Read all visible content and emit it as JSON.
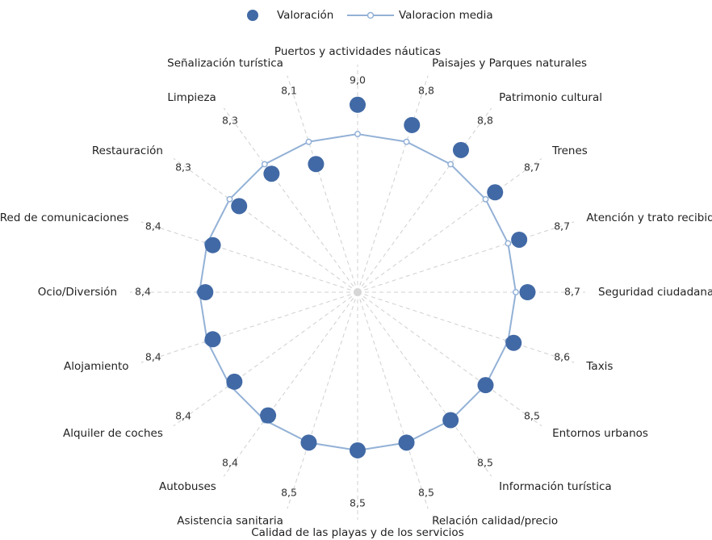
{
  "chart_data": {
    "type": "radar",
    "categories": [
      "Puertos y actividades náuticas",
      "Paisajes y Parques naturales",
      "Patrimonio cultural",
      "Trenes",
      "Atención y trato recibido",
      "Seguridad ciudadana",
      "Taxis",
      "Entornos urbanos",
      "Información turística",
      "Relación calidad/precio",
      "Calidad de las playas y de los servicios",
      "Asistencia sanitaria",
      "Autobuses",
      "Alquiler de coches",
      "Alojamiento",
      "Ocio/Diversión",
      "Red de comunicaciones",
      "Restauración",
      "Limpieza",
      "Señalización turística"
    ],
    "series": [
      {
        "name": "Valoración",
        "color": "#4169a5",
        "values": [
          9.0,
          8.8,
          8.8,
          8.7,
          8.7,
          8.7,
          8.6,
          8.5,
          8.5,
          8.5,
          8.5,
          8.5,
          8.4,
          8.4,
          8.4,
          8.4,
          8.4,
          8.3,
          8.3,
          8.1
        ],
        "value_labels": [
          "9,0",
          "8,8",
          "8,8",
          "8,7",
          "8,7",
          "8,7",
          "8,6",
          "8,5",
          "8,5",
          "8,5",
          "8,5",
          "8,5",
          "8,4",
          "8,4",
          "8,4",
          "8,4",
          "8,4",
          "8,3",
          "8,3",
          "8,1"
        ]
      },
      {
        "name": "Valoracion media",
        "color": "#93b1d6",
        "values": [
          8.5,
          8.5,
          8.5,
          8.5,
          8.5,
          8.5,
          8.5,
          8.5,
          8.5,
          8.5,
          8.5,
          8.5,
          8.5,
          8.5,
          8.5,
          8.5,
          8.5,
          8.5,
          8.5,
          8.5
        ]
      }
    ],
    "rlim": [
      5.8,
      9.3
    ]
  }
}
